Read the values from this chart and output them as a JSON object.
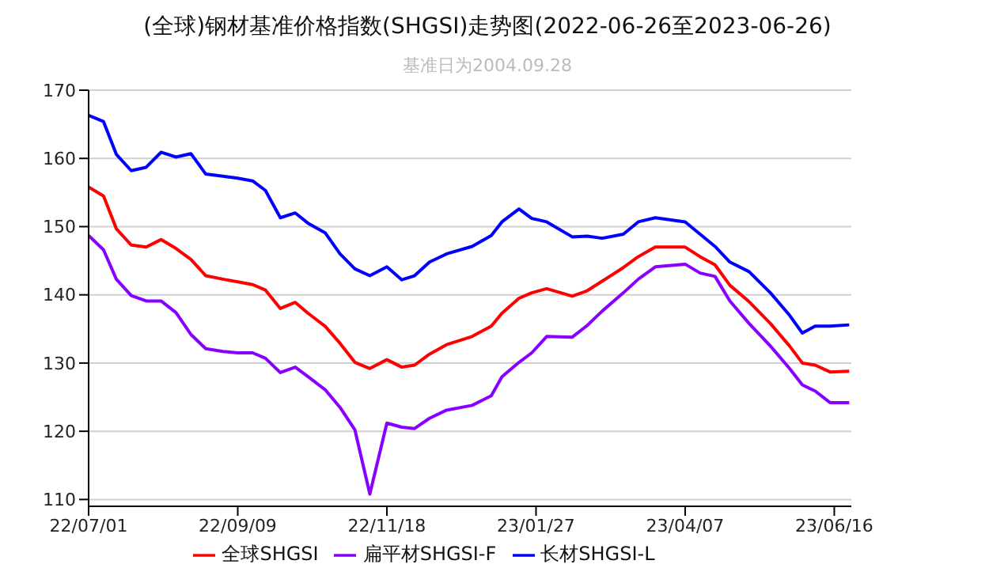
{
  "chart_data": {
    "type": "line",
    "title": "(全球)钢材基准价格指数(SHGSI)走势图(2022-06-26至2023-06-26)",
    "subtitle": "基准日为2004.09.28",
    "x": [
      "2022-07-01",
      "2022-07-08",
      "2022-07-14",
      "2022-07-21",
      "2022-07-28",
      "2022-08-04",
      "2022-08-11",
      "2022-08-18",
      "2022-08-25",
      "2022-09-02",
      "2022-09-09",
      "2022-09-16",
      "2022-09-22",
      "2022-09-29",
      "2022-10-06",
      "2022-10-12",
      "2022-10-20",
      "2022-10-27",
      "2022-11-03",
      "2022-11-10",
      "2022-11-18",
      "2022-11-25",
      "2022-12-01",
      "2022-12-08",
      "2022-12-16",
      "2022-12-28",
      "2023-01-06",
      "2023-01-11",
      "2023-01-19",
      "2023-01-25",
      "2023-02-01",
      "2023-02-13",
      "2023-02-20",
      "2023-02-27",
      "2023-03-09",
      "2023-03-16",
      "2023-03-24",
      "2023-04-07",
      "2023-04-14",
      "2023-04-21",
      "2023-04-28",
      "2023-05-07",
      "2023-05-17",
      "2023-05-26",
      "2023-06-01",
      "2023-06-07",
      "2023-06-14",
      "2023-06-23"
    ],
    "series": [
      {
        "name": "全球SHGSI",
        "color": "#ff0000",
        "values": [
          155.8,
          154.5,
          149.7,
          147.3,
          147.0,
          148.1,
          146.8,
          145.2,
          142.8,
          142.3,
          141.9,
          141.5,
          140.7,
          138.0,
          138.9,
          137.3,
          135.4,
          132.9,
          130.1,
          129.2,
          130.5,
          129.4,
          129.7,
          131.3,
          132.7,
          133.9,
          135.4,
          137.3,
          139.5,
          140.3,
          140.9,
          139.8,
          140.6,
          142.0,
          144.0,
          145.6,
          147.0,
          147.0,
          145.6,
          144.4,
          141.4,
          139.0,
          135.8,
          132.5,
          130.0,
          129.7,
          128.7,
          128.8
        ]
      },
      {
        "name": "扁平材SHGSI-F",
        "color": "#8800ff",
        "values": [
          148.7,
          146.6,
          142.3,
          139.9,
          139.1,
          139.1,
          137.4,
          134.2,
          132.1,
          131.7,
          131.5,
          131.5,
          130.7,
          128.6,
          129.4,
          128.0,
          126.1,
          123.5,
          120.2,
          110.8,
          121.2,
          120.6,
          120.4,
          121.9,
          123.1,
          123.8,
          125.2,
          128.0,
          130.1,
          131.5,
          133.9,
          133.8,
          135.5,
          137.6,
          140.3,
          142.3,
          144.1,
          144.5,
          143.2,
          142.7,
          139.1,
          135.8,
          132.5,
          129.2,
          126.8,
          125.9,
          124.2,
          124.2
        ]
      },
      {
        "name": "长材SHGSI-L",
        "color": "#0000ff",
        "values": [
          166.3,
          165.4,
          160.6,
          158.2,
          158.7,
          160.9,
          160.2,
          160.7,
          157.7,
          157.4,
          157.1,
          156.7,
          155.3,
          151.3,
          152.0,
          150.5,
          149.1,
          146.0,
          143.8,
          142.8,
          144.1,
          142.2,
          142.8,
          144.8,
          146.0,
          147.1,
          148.7,
          150.7,
          152.6,
          151.2,
          150.7,
          148.5,
          148.6,
          148.3,
          148.9,
          150.7,
          151.3,
          150.7,
          148.9,
          147.1,
          144.8,
          143.4,
          140.3,
          137.0,
          134.4,
          135.4,
          135.4,
          135.6
        ]
      }
    ],
    "xlim": [
      "2022-07-01",
      "2023-06-24"
    ],
    "xticks": [
      {
        "value": "2022-07-01",
        "label": "22/07/01"
      },
      {
        "value": "2022-09-09",
        "label": "22/09/09"
      },
      {
        "value": "2022-11-18",
        "label": "22/11/18"
      },
      {
        "value": "2023-01-27",
        "label": "23/01/27"
      },
      {
        "value": "2023-04-07",
        "label": "23/04/07"
      },
      {
        "value": "2023-06-16",
        "label": "23/06/16"
      }
    ],
    "ylim": [
      109,
      170
    ],
    "yticks": [
      110,
      120,
      130,
      140,
      150,
      160,
      170
    ],
    "grid": "y",
    "legend": "bottom",
    "marker": "none",
    "line_style": "solid"
  }
}
